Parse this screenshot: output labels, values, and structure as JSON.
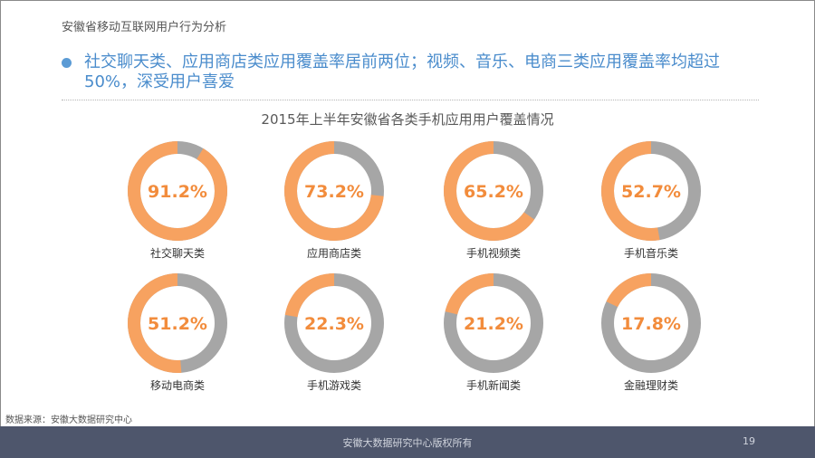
{
  "header": {
    "title": "安徽省移动互联网用户行为分析",
    "bullet": "社交聊天类、应用商店类应用覆盖率居前两位；视频、音乐、电商三类应用覆盖率均超过50%，深受用户喜爱"
  },
  "chart_data": {
    "type": "pie",
    "title": "2015年上半年安徽省各类手机应用用户覆盖情况",
    "unit": "%",
    "colors": {
      "covered": "#f7a260",
      "uncovered": "#a6a6a6",
      "value_text": "#f28c3c",
      "label_text": "#333333"
    },
    "items": [
      {
        "label": "社交聊天类",
        "value": 91.2,
        "value_text": "91.2%"
      },
      {
        "label": "应用商店类",
        "value": 73.2,
        "value_text": "73.2%"
      },
      {
        "label": "手机视频类",
        "value": 65.2,
        "value_text": "65.2%"
      },
      {
        "label": "手机音乐类",
        "value": 52.7,
        "value_text": "52.7%"
      },
      {
        "label": "移动电商类",
        "value": 51.2,
        "value_text": "51.2%"
      },
      {
        "label": "手机游戏类",
        "value": 22.3,
        "value_text": "22.3%"
      },
      {
        "label": "手机新闻类",
        "value": 21.2,
        "value_text": "21.2%"
      },
      {
        "label": "金融理财类",
        "value": 17.8,
        "value_text": "17.8%"
      }
    ]
  },
  "source": "数据来源：安徽大数据研究中心",
  "footer": {
    "copyright": "安徽大数据研究中心版权所有",
    "page_number": "19"
  }
}
